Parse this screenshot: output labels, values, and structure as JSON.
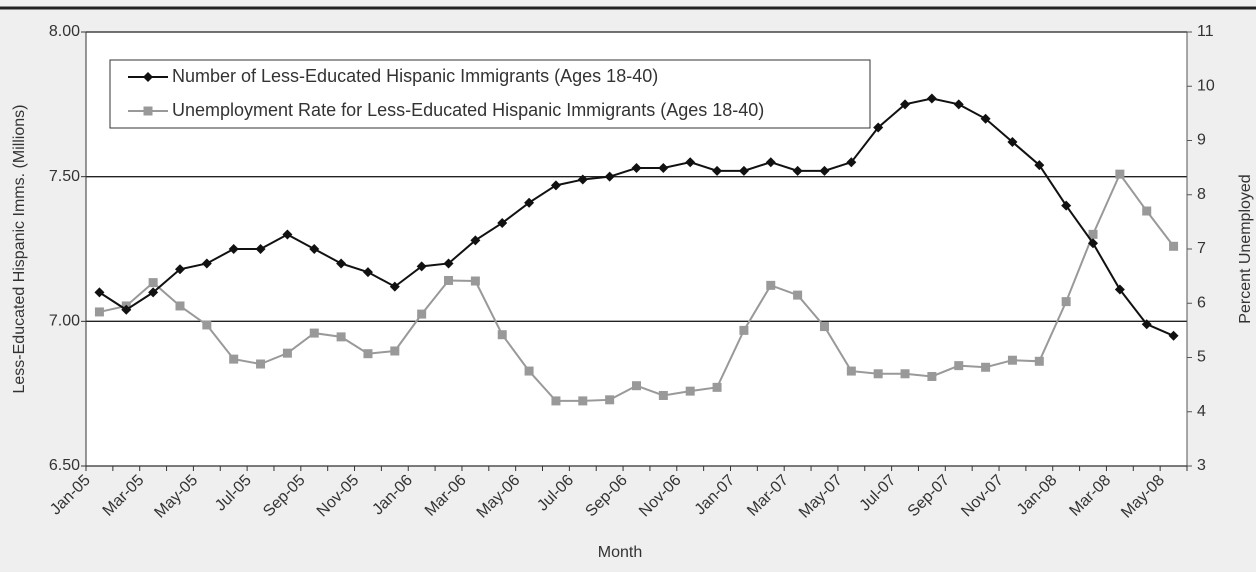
{
  "chart_data": {
    "type": "line",
    "x_label": "Month",
    "y_label": "Less-Educated Hispanic Imms. (Millions)",
    "y2_label": "Percent Unemployed",
    "categories": [
      "Jan-05",
      null,
      "Mar-05",
      null,
      "May-05",
      null,
      "Jul-05",
      null,
      "Sep-05",
      null,
      "Nov-05",
      null,
      "Jan-06",
      null,
      "Mar-06",
      null,
      "May-06",
      null,
      "Jul-06",
      null,
      "Sep-06",
      null,
      "Nov-06",
      null,
      "Jan-07",
      null,
      "Mar-07",
      null,
      "May-07",
      null,
      "Jul-07",
      null,
      "Sep-07",
      null,
      "Nov-07",
      null,
      "Jan-08",
      null,
      "Mar-08",
      null,
      "May-08"
    ],
    "ylim": [
      6.5,
      8.0
    ],
    "yticks": [
      {
        "value": 6.5,
        "label": "6.50"
      },
      {
        "value": 7.0,
        "label": "7.00"
      },
      {
        "value": 7.5,
        "label": "7.50"
      },
      {
        "value": 8.0,
        "label": "8.00"
      }
    ],
    "y2lim": [
      3,
      11
    ],
    "y2ticks": [
      3,
      4,
      5,
      6,
      7,
      8,
      9,
      10,
      11
    ],
    "grid": true,
    "legend": "top-left",
    "series": [
      {
        "name": "Number of Less-Educated Hispanic Immigrants (Ages 18-40)",
        "color": "#111111",
        "marker": "diamond",
        "values": [
          7.1,
          7.04,
          7.1,
          7.18,
          7.2,
          7.25,
          7.25,
          7.3,
          7.25,
          7.2,
          7.17,
          7.12,
          7.19,
          7.2,
          7.28,
          7.34,
          7.41,
          7.47,
          7.49,
          7.5,
          7.53,
          7.53,
          7.55,
          7.52,
          7.52,
          7.55,
          7.52,
          7.52,
          7.55,
          7.67,
          7.75,
          7.77,
          7.75,
          7.7,
          7.62,
          7.54,
          7.4,
          7.27,
          7.11,
          6.99,
          6.95
        ]
      },
      {
        "name": "Unemployment Rate for Less-Educated Hispanic Immigrants (Ages 18-40)",
        "color": "#999999",
        "marker": "square",
        "axis": "y2",
        "values": [
          5.84,
          5.95,
          6.38,
          5.95,
          5.6,
          4.97,
          4.88,
          5.08,
          5.45,
          5.38,
          5.07,
          5.12,
          5.8,
          6.42,
          6.41,
          5.42,
          4.75,
          4.2,
          4.2,
          4.22,
          4.48,
          4.3,
          4.38,
          4.45,
          5.5,
          6.33,
          6.15,
          5.57,
          4.75,
          4.7,
          4.7,
          4.65,
          4.85,
          4.82,
          4.95,
          4.93,
          6.03,
          7.27,
          8.38,
          7.7,
          7.05
        ]
      }
    ]
  }
}
